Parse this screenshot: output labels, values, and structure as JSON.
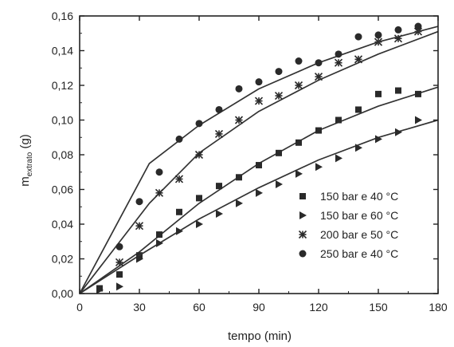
{
  "chart_data": {
    "type": "scatter",
    "xlabel": "tempo (min)",
    "ylabel": {
      "main": "m",
      "sub": "extrato",
      "tail": " (g)"
    },
    "xlim": [
      0,
      180
    ],
    "ylim": [
      0,
      0.16
    ],
    "xticks": [
      "0",
      "30",
      "60",
      "90",
      "120",
      "150",
      "180"
    ],
    "yticks": [
      "0,00",
      "0,02",
      "0,04",
      "0,06",
      "0,08",
      "0,10",
      "0,12",
      "0,14",
      "0,16"
    ],
    "grid": false,
    "legend_position": "bottom-right",
    "series": [
      {
        "name": "150 bar e 40 °C",
        "marker": "square",
        "x": [
          10,
          20,
          30,
          40,
          50,
          60,
          70,
          80,
          90,
          100,
          110,
          120,
          130,
          140,
          150,
          160,
          170
        ],
        "y": [
          0.003,
          0.011,
          0.022,
          0.034,
          0.047,
          0.055,
          0.062,
          0.067,
          0.074,
          0.081,
          0.087,
          0.094,
          0.1,
          0.106,
          0.115,
          0.117,
          0.115
        ],
        "fit_x": [
          0,
          30,
          60,
          90,
          120,
          150,
          180
        ],
        "fit_y": [
          0,
          0.024,
          0.052,
          0.075,
          0.094,
          0.108,
          0.119
        ]
      },
      {
        "name": "150 bar e 60 °C",
        "marker": "triangle-right",
        "x": [
          10,
          20,
          30,
          40,
          50,
          60,
          70,
          80,
          90,
          100,
          110,
          120,
          130,
          140,
          150,
          160,
          170
        ],
        "y": [
          0.002,
          0.004,
          0.02,
          0.029,
          0.036,
          0.04,
          0.046,
          0.052,
          0.058,
          0.063,
          0.069,
          0.073,
          0.078,
          0.084,
          0.089,
          0.093,
          0.1
        ],
        "fit_x": [
          0,
          30,
          60,
          90,
          120,
          150,
          180
        ],
        "fit_y": [
          0,
          0.022,
          0.043,
          0.061,
          0.077,
          0.09,
          0.1
        ]
      },
      {
        "name": "200 bar e 50 °C",
        "marker": "star",
        "x": [
          20,
          30,
          40,
          50,
          60,
          70,
          80,
          90,
          100,
          110,
          120,
          130,
          140,
          150,
          160,
          170
        ],
        "y": [
          0.018,
          0.039,
          0.058,
          0.066,
          0.08,
          0.092,
          0.1,
          0.111,
          0.114,
          0.12,
          0.125,
          0.133,
          0.135,
          0.145,
          0.147,
          0.151
        ],
        "fit_x": [
          0,
          35,
          60,
          90,
          120,
          150,
          180
        ],
        "fit_y": [
          0,
          0.052,
          0.081,
          0.105,
          0.123,
          0.138,
          0.151
        ]
      },
      {
        "name": "250 bar e 40 °C",
        "marker": "circle",
        "x": [
          20,
          30,
          40,
          50,
          60,
          70,
          80,
          90,
          100,
          110,
          120,
          130,
          140,
          150,
          160,
          170
        ],
        "y": [
          0.027,
          0.053,
          0.07,
          0.089,
          0.098,
          0.106,
          0.118,
          0.122,
          0.128,
          0.134,
          0.133,
          0.138,
          0.148,
          0.149,
          0.152,
          0.154
        ],
        "fit_x": [
          0,
          35,
          60,
          90,
          120,
          150,
          180
        ],
        "fit_y": [
          0,
          0.075,
          0.097,
          0.118,
          0.133,
          0.145,
          0.154
        ]
      }
    ]
  }
}
